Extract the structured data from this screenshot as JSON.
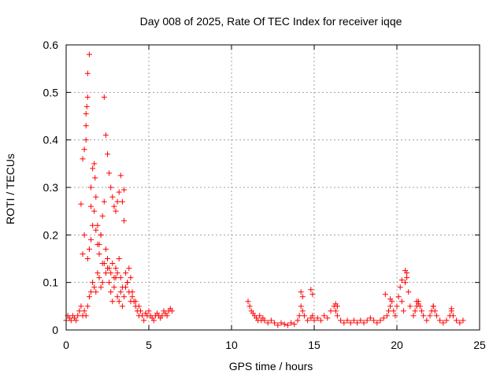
{
  "chart_data": {
    "type": "scatter",
    "title": "Day 008 of 2025, Rate Of TEC Index for receiver iqqe",
    "xlabel": "GPS time / hours",
    "ylabel": "ROTI / TECUs",
    "xlim": [
      0,
      25
    ],
    "ylim": [
      0,
      0.6
    ],
    "xticks": [
      "0",
      "5",
      "10",
      "15",
      "20",
      "25"
    ],
    "yticks": [
      "0",
      "0.1",
      "0.2",
      "0.3",
      "0.4",
      "0.5",
      "0.6"
    ],
    "grid": true,
    "marker": "plus",
    "color": "#ff0000",
    "series": [
      {
        "x": [
          0.0,
          0.1,
          0.2,
          0.3,
          0.4,
          0.5,
          0.6,
          0.7,
          0.8,
          0.9,
          1.0,
          1.1,
          1.2,
          1.3,
          1.4,
          1.5,
          1.6,
          1.7,
          1.8,
          1.9,
          2.0,
          2.1,
          2.2,
          2.3,
          2.4,
          2.5,
          2.6,
          2.7,
          2.8,
          2.9,
          3.0,
          3.1,
          3.2,
          3.3,
          3.4,
          3.5,
          3.6,
          3.7,
          3.8,
          3.9,
          4.0,
          4.1,
          4.2,
          4.3,
          4.4,
          4.5,
          4.6,
          4.7,
          4.8,
          4.9,
          5.0,
          5.1,
          5.2,
          5.3,
          5.4,
          5.5,
          5.6,
          5.7,
          5.8,
          5.9,
          6.0,
          6.1,
          6.2,
          6.3,
          6.4,
          0.9,
          1.0,
          1.1,
          1.2,
          1.2,
          1.2,
          1.25,
          1.3,
          1.3,
          1.4,
          1.5,
          1.5,
          1.6,
          1.7,
          1.75,
          1.8,
          1.9,
          2.0,
          2.1,
          2.2,
          2.3,
          2.3,
          2.4,
          2.5,
          2.6,
          2.7,
          2.8,
          2.9,
          3.0,
          3.1,
          3.2,
          3.3,
          3.4,
          3.5,
          3.5,
          1.0,
          1.1,
          1.3,
          1.4,
          1.5,
          1.6,
          1.7,
          1.8,
          1.9,
          2.0,
          2.1,
          2.2,
          2.4,
          2.5,
          2.6,
          2.7,
          2.8,
          2.9,
          3.0,
          3.1,
          3.2,
          3.3,
          3.4,
          3.6,
          3.7,
          3.8,
          3.9,
          4.0,
          4.2,
          4.4,
          11.0,
          11.1,
          11.2,
          11.3,
          11.4,
          11.5,
          11.6,
          11.7,
          11.8,
          11.9,
          12.0,
          12.2,
          12.4,
          12.6,
          12.8,
          13.0,
          13.2,
          13.4,
          13.6,
          13.8,
          14.0,
          14.1,
          14.2,
          14.3,
          14.4,
          14.6,
          14.8,
          14.9,
          15.0,
          15.2,
          15.4,
          15.6,
          15.8,
          16.0,
          16.2,
          16.3,
          16.4,
          16.6,
          16.8,
          17.0,
          17.2,
          17.4,
          17.6,
          17.8,
          18.0,
          18.2,
          18.4,
          18.6,
          18.8,
          19.0,
          19.2,
          19.4,
          19.5,
          19.6,
          19.7,
          19.8,
          19.9,
          20.0,
          20.1,
          20.2,
          20.3,
          20.4,
          20.5,
          20.6,
          20.7,
          20.8,
          21.0,
          21.1,
          21.2,
          21.3,
          21.4,
          21.5,
          21.6,
          21.8,
          22.0,
          22.1,
          22.2,
          22.3,
          22.4,
          22.6,
          22.8,
          23.0,
          23.2,
          23.3,
          23.4,
          23.6,
          23.8,
          24.0,
          14.2,
          14.3,
          14.8,
          14.9,
          16.3,
          16.4,
          19.3,
          19.6,
          20.3,
          20.5,
          20.6,
          21.2,
          21.3,
          22.2,
          23.3
        ],
        "y": [
          0.02,
          0.03,
          0.025,
          0.02,
          0.03,
          0.025,
          0.02,
          0.03,
          0.04,
          0.05,
          0.03,
          0.04,
          0.03,
          0.05,
          0.07,
          0.08,
          0.1,
          0.09,
          0.08,
          0.12,
          0.11,
          0.09,
          0.1,
          0.14,
          0.12,
          0.13,
          0.1,
          0.08,
          0.06,
          0.09,
          0.11,
          0.07,
          0.06,
          0.08,
          0.05,
          0.07,
          0.09,
          0.1,
          0.08,
          0.06,
          0.07,
          0.06,
          0.05,
          0.04,
          0.03,
          0.04,
          0.03,
          0.02,
          0.035,
          0.03,
          0.04,
          0.03,
          0.025,
          0.02,
          0.03,
          0.035,
          0.03,
          0.025,
          0.03,
          0.04,
          0.035,
          0.03,
          0.04,
          0.045,
          0.04,
          0.265,
          0.36,
          0.38,
          0.4,
          0.43,
          0.455,
          0.47,
          0.49,
          0.54,
          0.58,
          0.26,
          0.3,
          0.34,
          0.35,
          0.32,
          0.28,
          0.22,
          0.18,
          0.2,
          0.24,
          0.27,
          0.49,
          0.41,
          0.37,
          0.33,
          0.3,
          0.28,
          0.26,
          0.25,
          0.27,
          0.29,
          0.325,
          0.27,
          0.23,
          0.295,
          0.16,
          0.2,
          0.15,
          0.17,
          0.19,
          0.22,
          0.25,
          0.21,
          0.18,
          0.16,
          0.2,
          0.14,
          0.17,
          0.15,
          0.13,
          0.12,
          0.14,
          0.11,
          0.13,
          0.12,
          0.15,
          0.11,
          0.09,
          0.12,
          0.1,
          0.13,
          0.11,
          0.08,
          0.06,
          0.05,
          0.06,
          0.05,
          0.04,
          0.035,
          0.03,
          0.025,
          0.02,
          0.03,
          0.02,
          0.025,
          0.02,
          0.015,
          0.02,
          0.015,
          0.01,
          0.015,
          0.012,
          0.01,
          0.015,
          0.012,
          0.02,
          0.03,
          0.05,
          0.04,
          0.03,
          0.02,
          0.025,
          0.03,
          0.02,
          0.025,
          0.02,
          0.03,
          0.025,
          0.04,
          0.05,
          0.04,
          0.03,
          0.02,
          0.015,
          0.02,
          0.015,
          0.02,
          0.015,
          0.02,
          0.015,
          0.02,
          0.025,
          0.02,
          0.015,
          0.02,
          0.025,
          0.03,
          0.04,
          0.05,
          0.06,
          0.04,
          0.03,
          0.05,
          0.07,
          0.09,
          0.06,
          0.04,
          0.1,
          0.12,
          0.08,
          0.05,
          0.03,
          0.04,
          0.05,
          0.06,
          0.05,
          0.04,
          0.03,
          0.02,
          0.03,
          0.04,
          0.05,
          0.04,
          0.03,
          0.02,
          0.015,
          0.02,
          0.03,
          0.04,
          0.03,
          0.02,
          0.015,
          0.02,
          0.08,
          0.07,
          0.085,
          0.075,
          0.055,
          0.05,
          0.075,
          0.065,
          0.105,
          0.125,
          0.11,
          0.06,
          0.055,
          0.05,
          0.045
        ]
      }
    ]
  }
}
